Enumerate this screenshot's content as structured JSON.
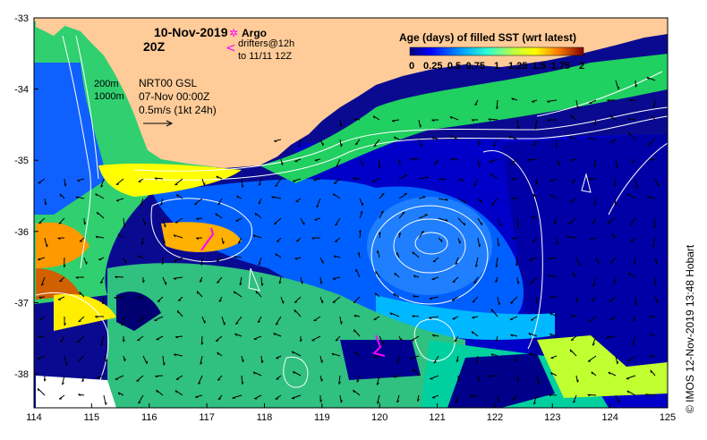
{
  "map": {
    "date": "10-Nov-2019",
    "hour": "20Z",
    "argo_label": "Argo",
    "drifters_label": "drifters@12h",
    "drifters_to": "to 11/11 12Z",
    "contour_shallow": "200m",
    "contour_deep": "1000m",
    "product": "NRT00 GSL",
    "product_date": "07-Nov 00:00Z",
    "scale_label": "0.5m/s (1kt 24h)",
    "colorbar_title": "Age (days) of filled SST (wrt latest)",
    "colorbar_ticks": [
      "0",
      "0.25",
      "0.5",
      "0.75",
      "1",
      "1.25",
      "1.5",
      "1.75",
      "2"
    ],
    "colorbar_colors": [
      "#00007f",
      "#0000d0",
      "#0050ff",
      "#00b0ff",
      "#30ffcf",
      "#9fff60",
      "#ffff00",
      "#ff9900",
      "#ff2a00",
      "#800000"
    ],
    "credit": "© IMOS 12-Nov-2019 13:48 Hobart",
    "x_ticks": [
      "114",
      "115",
      "116",
      "117",
      "118",
      "119",
      "120",
      "121",
      "122",
      "123",
      "124",
      "125"
    ],
    "y_ticks": [
      "-33",
      "-34",
      "-35",
      "-36",
      "-37",
      "-38"
    ],
    "land_color": "#ffcc99",
    "argo_color": "#ff00ff"
  }
}
